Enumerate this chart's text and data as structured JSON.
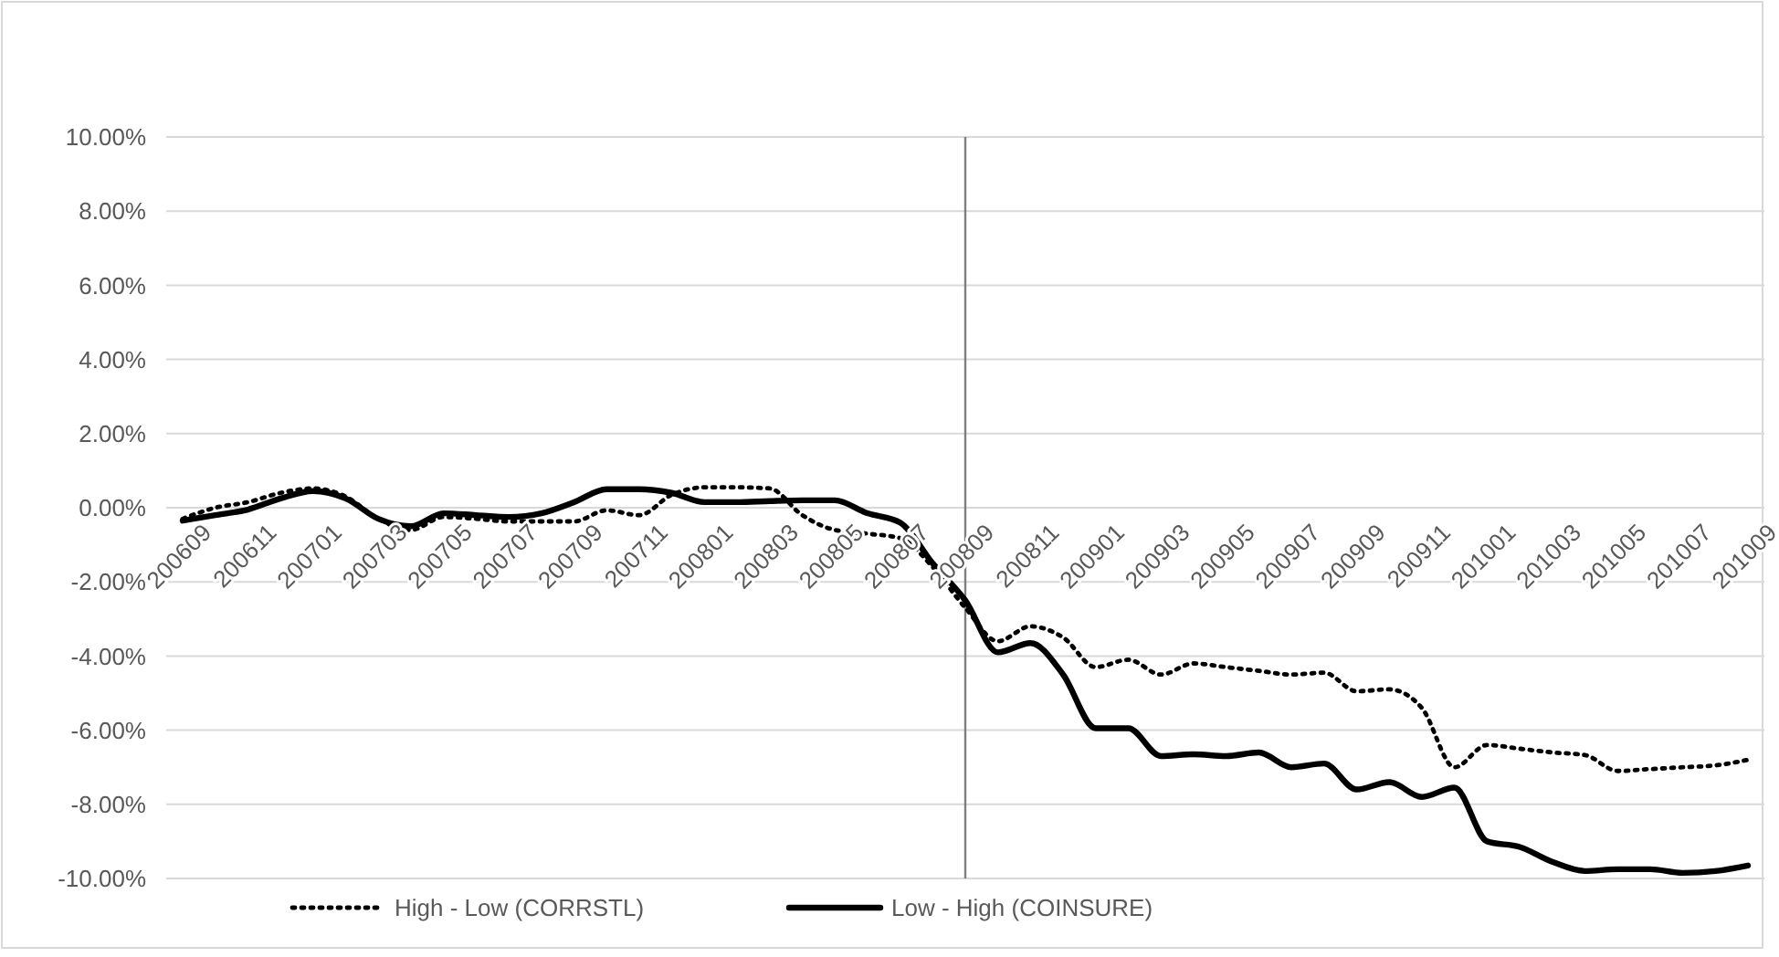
{
  "chart_data": {
    "type": "line",
    "categories": [
      "200609",
      null,
      "200611",
      null,
      "200701",
      null,
      "200703",
      null,
      "200705",
      null,
      "200707",
      null,
      "200709",
      null,
      "200711",
      null,
      "200801",
      null,
      "200803",
      null,
      "200805",
      null,
      "200807",
      null,
      "200809",
      null,
      "200811",
      null,
      "200901",
      null,
      "200903",
      null,
      "200905",
      null,
      "200907",
      null,
      "200909",
      null,
      "200911",
      null,
      "201001",
      null,
      "201003",
      null,
      "201005",
      null,
      "201007",
      null,
      "201009"
    ],
    "series": [
      {
        "name": "High - Low (CORRSTL)",
        "color": "#000000",
        "line_style": "dotted",
        "values": [
          -0.3,
          0.0,
          0.15,
          0.4,
          0.52,
          0.3,
          -0.3,
          -0.6,
          -0.25,
          -0.3,
          -0.37,
          -0.37,
          -0.37,
          -0.07,
          -0.2,
          0.35,
          0.55,
          0.55,
          0.52,
          -0.2,
          -0.6,
          -0.7,
          -0.82,
          -1.6,
          -2.7,
          -3.6,
          -3.2,
          -3.5,
          -4.3,
          -4.1,
          -4.5,
          -4.2,
          -4.3,
          -4.4,
          -4.5,
          -4.45,
          -4.95,
          -4.9,
          -5.4,
          -7.0,
          -6.4,
          -6.5,
          -6.6,
          -6.67,
          -7.1,
          -7.05,
          -7.0,
          -6.95,
          -6.8
        ]
      },
      {
        "name": "Low - High (COINSURE)",
        "color": "#000000",
        "line_style": "solid",
        "values": [
          -0.35,
          -0.2,
          -0.05,
          0.25,
          0.45,
          0.25,
          -0.3,
          -0.5,
          -0.15,
          -0.2,
          -0.25,
          -0.15,
          0.15,
          0.5,
          0.5,
          0.4,
          0.15,
          0.15,
          0.18,
          0.2,
          0.2,
          -0.15,
          -0.4,
          -1.5,
          -2.5,
          -3.9,
          -3.65,
          -4.5,
          -5.95,
          -5.95,
          -6.7,
          -6.65,
          -6.7,
          -6.6,
          -7.0,
          -6.9,
          -7.6,
          -7.4,
          -7.8,
          -7.55,
          -9.0,
          -9.15,
          -9.55,
          -9.8,
          -9.75,
          -9.75,
          -9.85,
          -9.8,
          -9.65
        ]
      }
    ],
    "ylim": [
      -10,
      10
    ],
    "yticks": [
      {
        "value": -10,
        "label": "-10.00%"
      },
      {
        "value": -8,
        "label": "-8.00%"
      },
      {
        "value": -6,
        "label": "-6.00%"
      },
      {
        "value": -4,
        "label": "-4.00%"
      },
      {
        "value": -2,
        "label": "-2.00%"
      },
      {
        "value": 0,
        "label": "0.00%"
      },
      {
        "value": 2,
        "label": "2.00%"
      },
      {
        "value": 4,
        "label": "4.00%"
      },
      {
        "value": 6,
        "label": "6.00%"
      },
      {
        "value": 8,
        "label": "8.00%"
      },
      {
        "value": 10,
        "label": "10.00%"
      }
    ],
    "ref_lines": [
      {
        "axis": "x",
        "value": "200809",
        "color": "#7f7f7f"
      }
    ],
    "grid": "y",
    "legend": "bottom"
  }
}
